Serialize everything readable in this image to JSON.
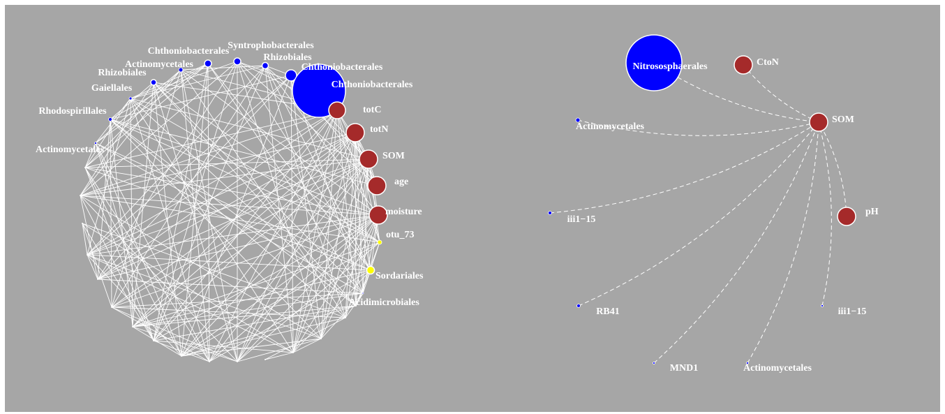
{
  "left": {
    "nodes": [
      "Chthoniobacterales",
      "Syntrophobacterales",
      "Rhizobiales",
      "Chthoniobacterales",
      "Chthoniobacterales",
      "Actinomycetales",
      "Rhizobiales",
      "Gaiellales",
      "Rhodospirillales",
      "Actinomycetales",
      "totC",
      "totN",
      "SOM",
      "age",
      "moisture",
      "otu_73",
      "Sordariales",
      "Acidimicrobiales"
    ]
  },
  "right": {
    "nodes": [
      "Nitrososphaerales",
      "CtoN",
      "SOM",
      "Actinomycetales",
      "iii1−15",
      "pH",
      "RB41",
      "iii1−15",
      "MND1",
      "Actinomycetales"
    ]
  }
}
